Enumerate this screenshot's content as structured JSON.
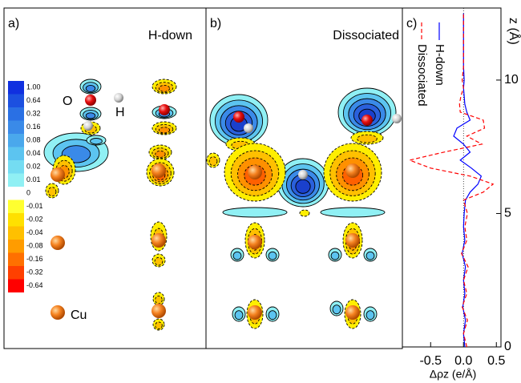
{
  "panels": [
    {
      "label": "a)",
      "title": "H-down",
      "atom_labels": [
        "O",
        "H",
        "Cu"
      ]
    },
    {
      "label": "b)",
      "title": "Dissociated"
    }
  ],
  "colorbar": {
    "labels": [
      "1.00",
      "0.64",
      "0.32",
      "0.16",
      "0.08",
      "0.04",
      "0.02",
      "0.01",
      "0",
      "-0.01",
      "-0.02",
      "-0.04",
      "-0.08",
      "-0.16",
      "-0.32",
      "-0.64"
    ],
    "colors": [
      "#1030e0",
      "#1c50e0",
      "#2a70e4",
      "#3a8ae8",
      "#4aa8ec",
      "#5cc4f0",
      "#74dcf2",
      "#90f0f4",
      "#ffffff",
      "#ffff30",
      "#ffe000",
      "#ffc000",
      "#ff9c00",
      "#ff7000",
      "#ff4000",
      "#ff0000"
    ]
  },
  "chart_data": {
    "type": "line",
    "label": "c)",
    "x_label": "Δρz (e/Å)",
    "y_label": "z (Å)",
    "xlim": [
      -0.93,
      0.57
    ],
    "xticks": [
      -0.5,
      {
        "value": 0,
        "label": "0.0"
      },
      0.5
    ],
    "ylim": [
      0,
      12.7
    ],
    "yticks": [
      0,
      5,
      10
    ],
    "legend": "top",
    "zero_line": true,
    "y": [
      0,
      0.5,
      1,
      1.5,
      2,
      2.5,
      3,
      3.5,
      4,
      4.5,
      5,
      5.5,
      5.8,
      6.1,
      6.4,
      6.7,
      7.0,
      7.3,
      7.6,
      7.9,
      8.2,
      8.5,
      8.8,
      9.1,
      9.4,
      9.7,
      10,
      10.5,
      11,
      11.5,
      12,
      12.5
    ],
    "series": [
      {
        "name": "H-down",
        "color": "#0000ff",
        "dash": "solid",
        "values": [
          0.02,
          0.0,
          0.03,
          -0.01,
          0.02,
          0.0,
          0.03,
          -0.02,
          0.02,
          0.0,
          0.01,
          0.03,
          0.1,
          0.22,
          0.27,
          0.12,
          -0.05,
          0.1,
          0.0,
          -0.15,
          -0.1,
          0.1,
          0.05,
          0.02,
          0.01,
          0.0,
          0.01,
          0.0,
          0.0,
          0.0,
          0.0,
          0.0
        ]
      },
      {
        "name": "Dissociated",
        "color": "#ff0000",
        "dash": "dashed",
        "values": [
          0.05,
          0.0,
          0.06,
          -0.02,
          0.05,
          0.0,
          0.07,
          -0.03,
          0.05,
          0.02,
          0.06,
          0.0,
          0.3,
          0.45,
          0.1,
          -0.5,
          -0.82,
          -0.3,
          0.28,
          0.05,
          0.32,
          0.3,
          -0.05,
          -0.06,
          -0.04,
          0.0,
          -0.02,
          0.0,
          0.0,
          0.0,
          0.0,
          0.0
        ]
      }
    ]
  }
}
